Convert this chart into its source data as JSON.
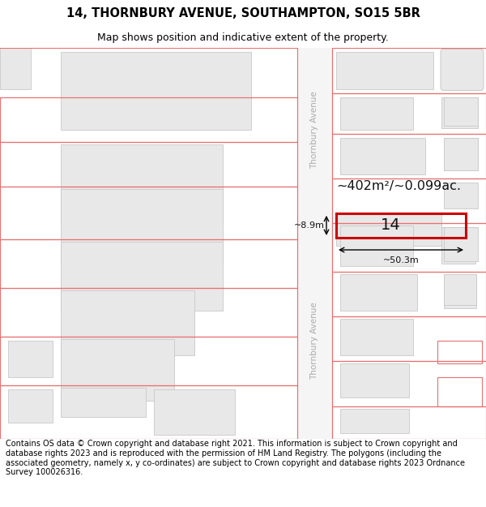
{
  "title_line1": "14, THORNBURY AVENUE, SOUTHAMPTON, SO15 5BR",
  "title_line2": "Map shows position and indicative extent of the property.",
  "footer_text": "Contains OS data © Crown copyright and database right 2021. This information is subject to Crown copyright and database rights 2023 and is reproduced with the permission of HM Land Registry. The polygons (including the associated geometry, namely x, y co-ordinates) are subject to Crown copyright and database rights 2023 Ordnance Survey 100026316.",
  "bg_color": "#ffffff",
  "map_bg": "#ffffff",
  "building_fill": "#e8e8e8",
  "building_edge": "#c8c8c8",
  "red_outline": "#e87070",
  "highlight_red": "#cc0000",
  "area_label": "~402m²/~0.099ac.",
  "width_label": "~50.3m",
  "height_label": "~8.9m",
  "property_number": "14",
  "title_fontsize": 10.5,
  "subtitle_fontsize": 9,
  "footer_fontsize": 7.0,
  "street_color": "#aaaaaa"
}
